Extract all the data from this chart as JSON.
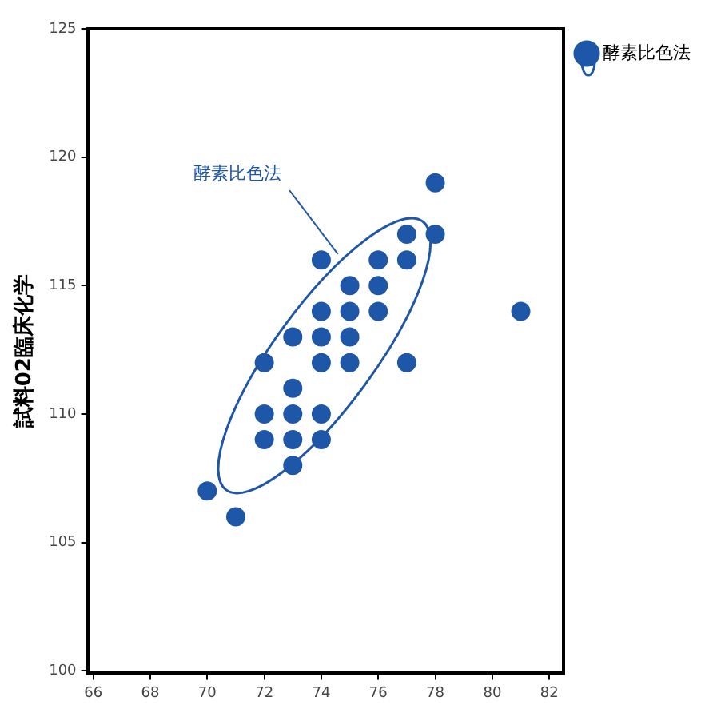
{
  "chart_data": {
    "type": "scatter",
    "ylabel": "試料02臨床化学",
    "xlim": [
      65.8,
      82.5
    ],
    "xticks": [
      66,
      68,
      70,
      72,
      74,
      76,
      78,
      80,
      82
    ],
    "ylim": [
      99.9,
      125
    ],
    "yticks": [
      100,
      105,
      110,
      115,
      120,
      125
    ],
    "grid": false,
    "legend": "top right",
    "marker": "circle",
    "annotations": [
      "酵素比色法"
    ],
    "series": [
      {
        "name": "酵素比色法",
        "color": "#1f57a8",
        "x": [
          70,
          71,
          72,
          72,
          72,
          73,
          73,
          73,
          73,
          73,
          74,
          74,
          74,
          74,
          74,
          74,
          75,
          75,
          75,
          75,
          76,
          76,
          76,
          77,
          77,
          77,
          78,
          78,
          81
        ],
        "values": [
          107,
          106,
          112,
          110,
          109,
          113,
          111,
          110,
          109,
          108,
          116,
          114,
          113,
          112,
          110,
          109,
          115,
          114,
          113,
          112,
          116,
          115,
          114,
          117,
          116,
          112,
          119,
          117,
          114
        ]
      }
    ]
  }
}
